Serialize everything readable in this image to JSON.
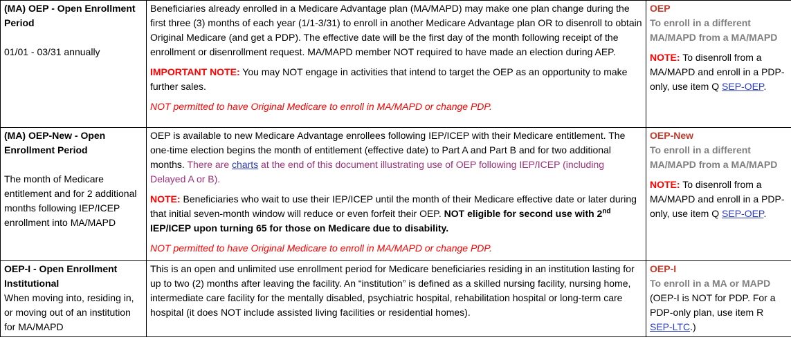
{
  "rows": [
    {
      "title": "(MA) OEP - Open Enrollment Period",
      "subtitle": "01/01 - 03/31 annually",
      "desc": "Beneficiaries already enrolled in a Medicare Advantage plan (MA/MAPD) may make one plan change during the first three (3) months of each year (1/1-3/31) to enroll in another Medicare Advantage plan OR to disenroll to obtain Original Medicare (and get a PDP).  The effective date will be the first day of the month following receipt of the enrollment or disenrollment request.  MA/MAPD member NOT required to have made an election during AEP.",
      "note_label": "IMPORTANT NOTE:",
      "note_text": " You may NOT engage in activities that intend to target the OEP as an opportunity to make further sales.",
      "warning": "NOT permitted to have Original Medicare to enroll in MA/MAPD or change PDP.",
      "code": "OEP",
      "purpose": "To enroll in a different MA/MAPD from a MA/MAPD",
      "side_note_label": "NOTE:",
      "side_note_text": " To disenroll from a MA/MAPD and enroll in a PDP-only, use item Q ",
      "side_link": "SEP-OEP",
      "side_end": "."
    },
    {
      "title": "(MA) OEP-New - Open Enrollment Period",
      "subtitle": "The month of Medicare entitlement and for 2 additional months following IEP/ICEP enrollment into MA/MAPD",
      "desc_a": "OEP is available to new Medicare Advantage enrollees following IEP/ICEP with their Medicare entitlement.  The one-time election begins the month of entitlement (effective date) to Part A and Part B and for two additional months. ",
      "desc_b": "There are ",
      "desc_link": "charts",
      "desc_c": " at the end of this document illustrating use of OEP following IEP/ICEP (including Delayed A or B).",
      "note_label": "NOTE:",
      "note_text": "  Beneficiaries who wait to use their IEP/ICEP until the month of their Medicare effective date or later during that initial seven-month window will reduce or even forfeit their OEP.  ",
      "note_bold_a": "NOT eligible for second use with 2",
      "note_bold_sup": "nd",
      "note_bold_b": " IEP/ICEP upon turning 65 for those on Medicare due to disability.",
      "warning": "NOT permitted to have Original Medicare to enroll in MA/MAPD or change PDP.",
      "code": "OEP-New",
      "purpose": "To enroll in a different MA/MAPD from a MA/MAPD",
      "side_note_label": "NOTE:",
      "side_note_text": " To disenroll from a MA/MAPD and enroll in a PDP-only, use item Q ",
      "side_link": "SEP-OEP",
      "side_end": "."
    },
    {
      "title": "OEP-I - Open Enrollment Institutional",
      "subtitle": "When moving into, residing in, or moving out of an institution for MA/MAPD",
      "desc": "This is an open and unlimited use enrollment period for Medicare beneficiaries residing in an institution lasting for up to two (2) months after leaving the facility.  An “institution” is defined as a skilled nursing facility, nursing home, intermediate care facility for the mentally disabled, psychiatric hospital, rehabilitation hospital or long-term care hospital (it does NOT include assisted living facilities or residential homes).",
      "code": "OEP-I",
      "purpose": "To enroll in a MA or MAPD",
      "side_text": "(OEP-I is NOT for PDP.  For a PDP-only plan, use item R ",
      "side_link": "SEP-LTC",
      "side_end": ".)"
    }
  ]
}
